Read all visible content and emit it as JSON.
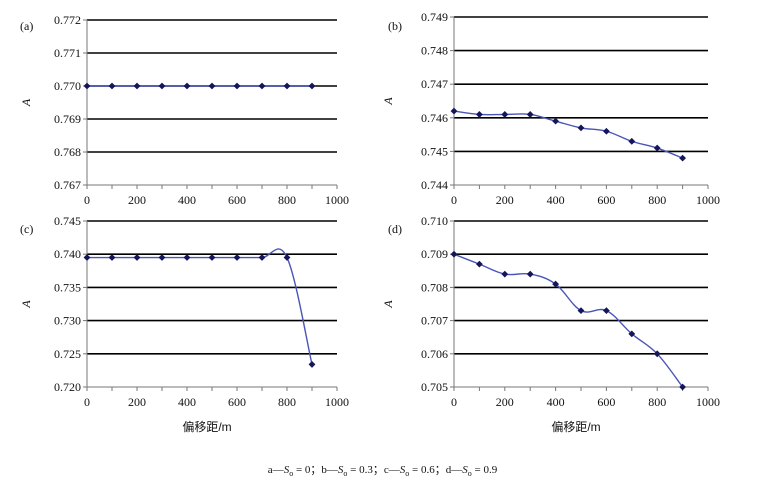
{
  "chart_data": [
    {
      "panel": "(a)",
      "type": "line",
      "ylabel": "A",
      "xlabel": "",
      "xlim": [
        0,
        1000
      ],
      "ylim": [
        0.767,
        0.772
      ],
      "x_ticks": [
        "0",
        "200",
        "400",
        "600",
        "800",
        "1000"
      ],
      "y_ticks": [
        "0.767",
        "0.768",
        "0.769",
        "0.770",
        "0.771",
        "0.772"
      ],
      "grid": "horizontal",
      "x": [
        0,
        100,
        200,
        300,
        400,
        500,
        600,
        700,
        800,
        900
      ],
      "values": [
        0.77,
        0.77,
        0.77,
        0.77,
        0.77,
        0.77,
        0.77,
        0.77,
        0.77,
        0.77
      ]
    },
    {
      "panel": "(b)",
      "type": "line",
      "ylabel": "A",
      "xlabel": "",
      "xlim": [
        0,
        1000
      ],
      "ylim": [
        0.744,
        0.749
      ],
      "x_ticks": [
        "0",
        "200",
        "400",
        "600",
        "800",
        "1000"
      ],
      "y_ticks": [
        "0.744",
        "0.745",
        "0.746",
        "0.747",
        "0.748",
        "0.749"
      ],
      "grid": "horizontal",
      "x": [
        0,
        100,
        200,
        300,
        400,
        500,
        600,
        700,
        800,
        900
      ],
      "values": [
        0.7462,
        0.7461,
        0.7461,
        0.7461,
        0.7459,
        0.7457,
        0.7456,
        0.7453,
        0.7451,
        0.7448
      ]
    },
    {
      "panel": "(c)",
      "type": "line",
      "ylabel": "A",
      "xlabel": "偏移距/m",
      "xlim": [
        0,
        1000
      ],
      "ylim": [
        0.72,
        0.745
      ],
      "x_ticks": [
        "0",
        "200",
        "400",
        "600",
        "800",
        "1000"
      ],
      "y_ticks": [
        "0.720",
        "0.725",
        "0.730",
        "0.735",
        "0.740",
        "0.745"
      ],
      "grid": "horizontal",
      "x": [
        0,
        100,
        200,
        300,
        400,
        500,
        600,
        700,
        800,
        900
      ],
      "values": [
        0.7395,
        0.7395,
        0.7395,
        0.7395,
        0.7395,
        0.7395,
        0.7395,
        0.7395,
        0.7395,
        0.7234
      ]
    },
    {
      "panel": "(d)",
      "type": "line",
      "ylabel": "A",
      "xlabel": "偏移距/m",
      "xlim": [
        0,
        1000
      ],
      "ylim": [
        0.705,
        0.71
      ],
      "x_ticks": [
        "0",
        "200",
        "400",
        "600",
        "800",
        "1000"
      ],
      "y_ticks": [
        "0.705",
        "0.706",
        "0.707",
        "0.708",
        "0.709",
        "0.710"
      ],
      "grid": "horizontal",
      "x": [
        0,
        100,
        200,
        300,
        400,
        500,
        600,
        700,
        800,
        900
      ],
      "values": [
        0.709,
        0.7087,
        0.7084,
        0.7084,
        0.7081,
        0.7073,
        0.7073,
        0.7066,
        0.706,
        0.705
      ]
    }
  ],
  "caption": {
    "parts": [
      {
        "letter": "a",
        "value": "0"
      },
      {
        "letter": "b",
        "value": "0.3"
      },
      {
        "letter": "c",
        "value": "0.6"
      },
      {
        "letter": "d",
        "value": "0.9"
      }
    ],
    "dash": "—",
    "variable": "S",
    "subscript": "o",
    "equals": " = ",
    "separator": "；"
  },
  "colors": {
    "line": "#4a55b8",
    "marker": "#15155a",
    "grid": "#000000",
    "axis": "#777777"
  }
}
